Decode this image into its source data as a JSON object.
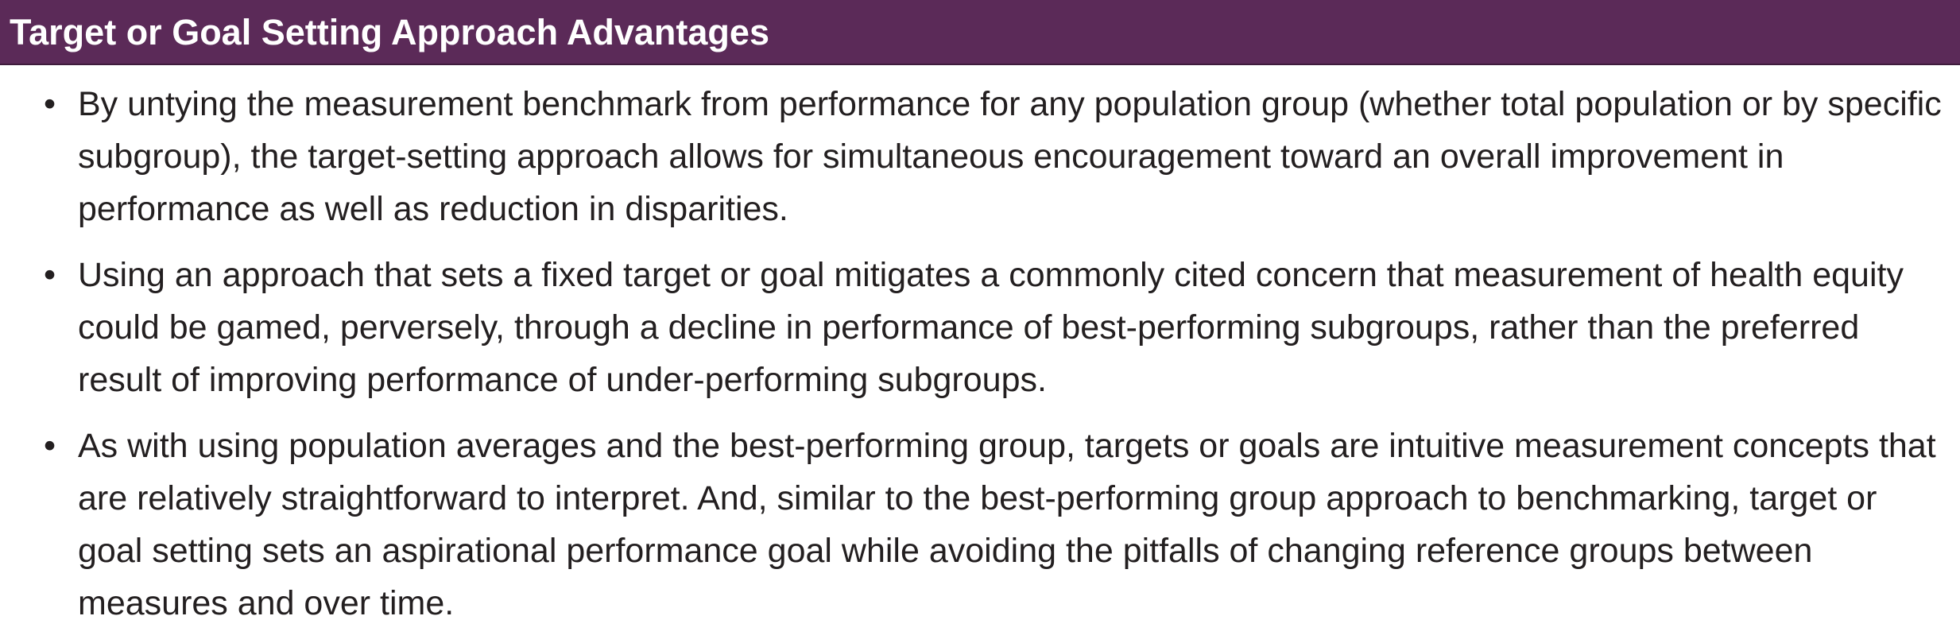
{
  "header": {
    "title": "Target or Goal Setting Approach Advantages"
  },
  "bullet_symbol": "•",
  "bullets": [
    {
      "text": "By untying the measurement benchmark from performance for any population group (whether total population or by specific subgroup), the target-setting approach allows for simultaneous encouragement toward an overall improvement in performance as well as reduction in disparities."
    },
    {
      "text": "Using an approach that sets a fixed target or goal mitigates a commonly cited concern that measurement of health equity could be gamed, perversely, through a decline in performance of best-performing subgroups, rather than the preferred result of improving performance of under-performing subgroups."
    },
    {
      "text": "As with using population averages and the best-performing group, targets or goals are intuitive measurement concepts that are relatively straightforward to interpret. And, similar to the best-performing group approach to benchmarking, target or goal setting sets an aspirational performance goal while avoiding the pitfalls of changing reference groups between measures and over time."
    }
  ],
  "colors": {
    "header_background": "#5b2a58",
    "header_text": "#ffffff",
    "body_text": "#231f20"
  }
}
